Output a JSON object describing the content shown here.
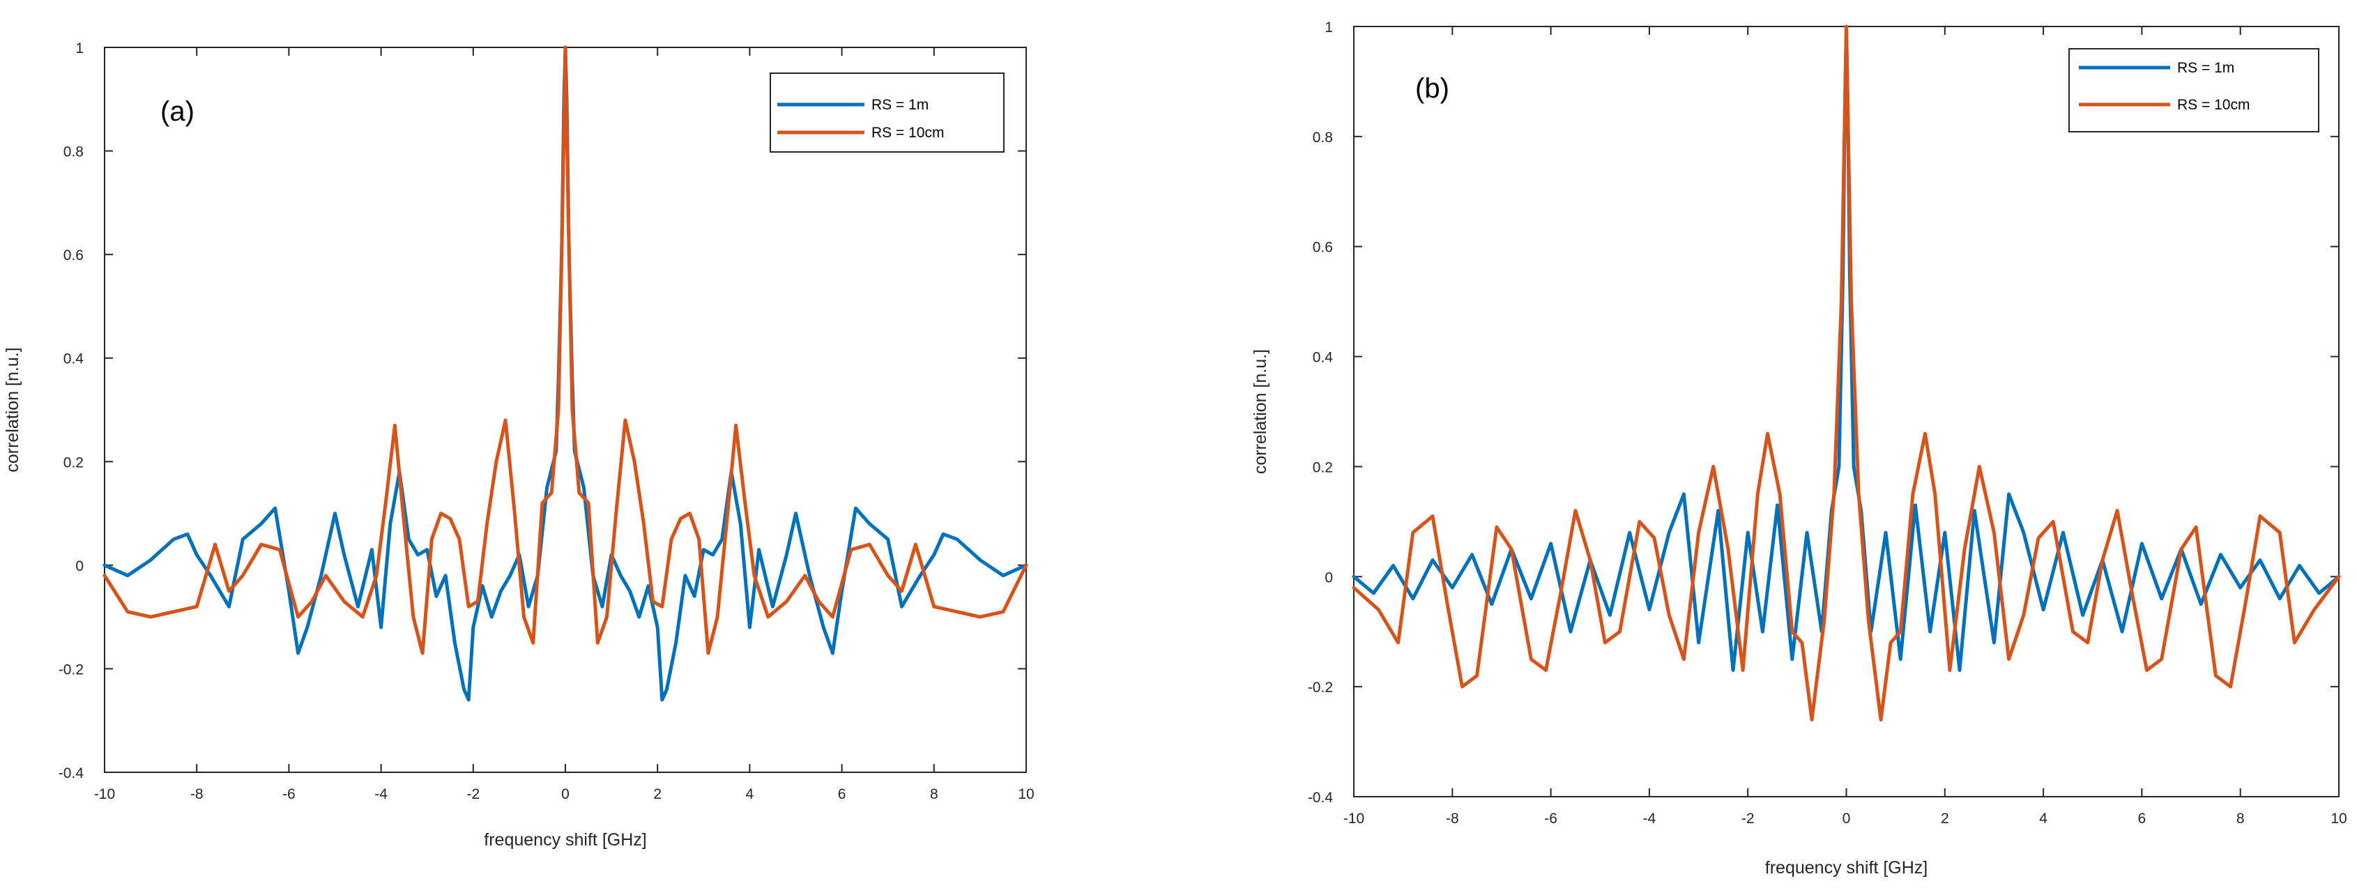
{
  "chart_data": [
    {
      "type": "line",
      "panel_label": "(a)",
      "xlabel": "frequency shift [GHz]",
      "ylabel": "correlation [n.u.]",
      "xlim": [
        -10,
        10
      ],
      "ylim": [
        -0.4,
        1
      ],
      "xticks": [
        -10,
        -8,
        -6,
        -4,
        -2,
        0,
        2,
        4,
        6,
        8,
        10
      ],
      "xtick_labels": [
        "-10",
        "-8",
        "-6",
        "-4",
        "-2",
        "0",
        "2",
        "4",
        "6",
        "8",
        "10"
      ],
      "yticks": [
        -0.4,
        -0.2,
        0,
        0.2,
        0.4,
        0.6,
        0.8,
        1
      ],
      "ytick_labels": [
        "-0.4",
        "-0.2",
        "0",
        "0.2",
        "0.4",
        "0.6",
        "0.8",
        "1"
      ],
      "legend_position": "top-right",
      "grid": false,
      "series": [
        {
          "name": "RS = 1m",
          "color": "#0072BD",
          "x": [
            -10,
            -9.5,
            -9,
            -8.5,
            -8.2,
            -8,
            -7.7,
            -7.3,
            -7,
            -6.6,
            -6.3,
            -6,
            -5.8,
            -5.6,
            -5.3,
            -5,
            -4.8,
            -4.5,
            -4.2,
            -4,
            -3.8,
            -3.6,
            -3.4,
            -3.2,
            -3,
            -2.8,
            -2.6,
            -2.4,
            -2.2,
            -2.1,
            -2,
            -1.8,
            -1.6,
            -1.4,
            -1.2,
            -1,
            -0.8,
            -0.6,
            -0.4,
            -0.2,
            -0.15,
            -0.08,
            -0.03,
            0,
            0.03,
            0.08,
            0.15,
            0.2,
            0.4,
            0.6,
            0.8,
            1,
            1.2,
            1.4,
            1.6,
            1.8,
            2,
            2.1,
            2.2,
            2.4,
            2.6,
            2.8,
            3,
            3.2,
            3.4,
            3.6,
            3.8,
            4,
            4.2,
            4.5,
            4.8,
            5,
            5.3,
            5.6,
            5.8,
            6,
            6.3,
            6.6,
            7,
            7.3,
            7.7,
            8,
            8.2,
            8.5,
            9,
            9.5,
            10
          ],
          "y": [
            0,
            -0.02,
            0.01,
            0.05,
            0.06,
            0.02,
            -0.02,
            -0.08,
            0.05,
            0.08,
            0.11,
            -0.05,
            -0.17,
            -0.12,
            -0.02,
            0.1,
            0.02,
            -0.08,
            0.03,
            -0.12,
            0.08,
            0.18,
            0.05,
            0.02,
            0.03,
            -0.06,
            -0.02,
            -0.15,
            -0.24,
            -0.26,
            -0.12,
            -0.04,
            -0.1,
            -0.05,
            -0.02,
            0.02,
            -0.08,
            -0.02,
            0.15,
            0.22,
            0.36,
            0.6,
            0.9,
            1.0,
            0.9,
            0.6,
            0.36,
            0.22,
            0.15,
            -0.02,
            -0.08,
            0.02,
            -0.02,
            -0.05,
            -0.1,
            -0.04,
            -0.12,
            -0.26,
            -0.24,
            -0.15,
            -0.02,
            -0.06,
            0.03,
            0.02,
            0.05,
            0.18,
            0.08,
            -0.12,
            0.03,
            -0.08,
            0.02,
            0.1,
            -0.02,
            -0.12,
            -0.17,
            -0.05,
            0.11,
            0.08,
            0.05,
            -0.08,
            -0.02,
            0.02,
            0.06,
            0.05,
            0.01,
            -0.02,
            0
          ]
        },
        {
          "name": "RS = 10cm",
          "color": "#D95319",
          "x": [
            -10,
            -9.5,
            -9,
            -8.5,
            -8,
            -7.6,
            -7.3,
            -7,
            -6.6,
            -6.2,
            -5.8,
            -5.5,
            -5.2,
            -4.8,
            -4.4,
            -4.1,
            -3.9,
            -3.7,
            -3.5,
            -3.3,
            -3.1,
            -2.9,
            -2.7,
            -2.5,
            -2.3,
            -2.1,
            -1.9,
            -1.7,
            -1.5,
            -1.3,
            -1.1,
            -0.9,
            -0.7,
            -0.5,
            -0.3,
            -0.15,
            -0.07,
            0,
            0.07,
            0.15,
            0.3,
            0.5,
            0.7,
            0.9,
            1.1,
            1.3,
            1.5,
            1.7,
            1.9,
            2.1,
            2.3,
            2.5,
            2.7,
            2.9,
            3.1,
            3.3,
            3.5,
            3.7,
            3.9,
            4.1,
            4.4,
            4.8,
            5.2,
            5.5,
            5.8,
            6.2,
            6.6,
            7,
            7.3,
            7.6,
            8,
            8.5,
            9,
            9.5,
            10
          ],
          "y": [
            -0.02,
            -0.09,
            -0.1,
            -0.09,
            -0.08,
            0.04,
            -0.05,
            -0.02,
            0.04,
            0.03,
            -0.1,
            -0.07,
            -0.02,
            -0.07,
            -0.1,
            -0.02,
            0.12,
            0.27,
            0.08,
            -0.1,
            -0.17,
            0.05,
            0.1,
            0.09,
            0.05,
            -0.08,
            -0.07,
            0.08,
            0.2,
            0.28,
            0.1,
            -0.1,
            -0.15,
            0.12,
            0.14,
            0.3,
            0.65,
            1.0,
            0.65,
            0.3,
            0.14,
            0.12,
            -0.15,
            -0.1,
            0.1,
            0.28,
            0.2,
            0.08,
            -0.07,
            -0.08,
            0.05,
            0.09,
            0.1,
            0.05,
            -0.17,
            -0.1,
            0.08,
            0.27,
            0.12,
            -0.02,
            -0.1,
            -0.07,
            -0.02,
            -0.07,
            -0.1,
            0.03,
            0.04,
            -0.02,
            -0.05,
            0.04,
            -0.08,
            -0.09,
            -0.1,
            -0.09,
            0
          ]
        }
      ]
    },
    {
      "type": "line",
      "panel_label": "(b)",
      "xlabel": "frequency shift [GHz]",
      "ylabel": "correlation [n.u.]",
      "xlim": [
        -10,
        10
      ],
      "ylim": [
        -0.4,
        1
      ],
      "xticks": [
        -10,
        -8,
        -6,
        -4,
        -2,
        0,
        2,
        4,
        6,
        8,
        10
      ],
      "xtick_labels": [
        "-10",
        "-8",
        "-6",
        "-4",
        "-2",
        "0",
        "2",
        "4",
        "6",
        "8",
        "10"
      ],
      "yticks": [
        -0.4,
        -0.2,
        0,
        0.2,
        0.4,
        0.6,
        0.8,
        1
      ],
      "ytick_labels": [
        "-0.4",
        "-0.2",
        "0",
        "0.2",
        "0.4",
        "0.6",
        "0.8",
        "1"
      ],
      "legend_position": "top-right",
      "grid": false,
      "series": [
        {
          "name": "RS = 1m",
          "color": "#0072BD",
          "x": [
            -10,
            -9.6,
            -9.2,
            -8.8,
            -8.4,
            -8,
            -7.6,
            -7.2,
            -6.8,
            -6.4,
            -6,
            -5.6,
            -5.2,
            -4.8,
            -4.4,
            -4,
            -3.6,
            -3.3,
            -3,
            -2.6,
            -2.3,
            -2,
            -1.7,
            -1.4,
            -1.1,
            -0.8,
            -0.5,
            -0.3,
            -0.15,
            -0.07,
            -0.03,
            0,
            0.03,
            0.07,
            0.15,
            0.3,
            0.5,
            0.8,
            1.1,
            1.4,
            1.7,
            2,
            2.3,
            2.6,
            3,
            3.3,
            3.6,
            4,
            4.4,
            4.8,
            5.2,
            5.6,
            6,
            6.4,
            6.8,
            7.2,
            7.6,
            8,
            8.4,
            8.8,
            9.2,
            9.6,
            10
          ],
          "y": [
            0,
            -0.03,
            0.02,
            -0.04,
            0.03,
            -0.02,
            0.04,
            -0.05,
            0.05,
            -0.04,
            0.06,
            -0.1,
            0.03,
            -0.07,
            0.08,
            -0.06,
            0.08,
            0.15,
            -0.12,
            0.12,
            -0.17,
            0.08,
            -0.1,
            0.13,
            -0.15,
            0.08,
            -0.1,
            0.12,
            0.2,
            0.55,
            0.85,
            1.0,
            0.85,
            0.55,
            0.2,
            0.12,
            -0.1,
            0.08,
            -0.15,
            0.13,
            -0.1,
            0.08,
            -0.17,
            0.12,
            -0.12,
            0.15,
            0.08,
            -0.06,
            0.08,
            -0.07,
            0.03,
            -0.1,
            0.06,
            -0.04,
            0.05,
            -0.05,
            0.04,
            -0.02,
            0.03,
            -0.04,
            0.02,
            -0.03,
            0
          ]
        },
        {
          "name": "RS = 10cm",
          "color": "#D95319",
          "x": [
            -10,
            -9.5,
            -9.1,
            -8.8,
            -8.4,
            -8.1,
            -7.8,
            -7.5,
            -7.1,
            -6.8,
            -6.4,
            -6.1,
            -5.8,
            -5.5,
            -5.2,
            -4.9,
            -4.6,
            -4.2,
            -3.9,
            -3.6,
            -3.3,
            -3.0,
            -2.7,
            -2.4,
            -2.1,
            -1.8,
            -1.6,
            -1.35,
            -1.1,
            -0.9,
            -0.7,
            -0.45,
            -0.25,
            -0.1,
            0,
            0.1,
            0.25,
            0.45,
            0.7,
            0.9,
            1.1,
            1.35,
            1.6,
            1.8,
            2.1,
            2.4,
            2.7,
            3.0,
            3.3,
            3.6,
            3.9,
            4.2,
            4.6,
            4.9,
            5.2,
            5.5,
            5.8,
            6.1,
            6.4,
            6.8,
            7.1,
            7.5,
            7.8,
            8.1,
            8.4,
            8.8,
            9.1,
            9.5,
            10
          ],
          "y": [
            -0.02,
            -0.06,
            -0.12,
            0.08,
            0.11,
            -0.05,
            -0.2,
            -0.18,
            0.09,
            0.05,
            -0.15,
            -0.17,
            -0.03,
            0.12,
            0.03,
            -0.12,
            -0.1,
            0.1,
            0.07,
            -0.07,
            -0.15,
            0.08,
            0.2,
            0.05,
            -0.17,
            0.15,
            0.26,
            0.15,
            -0.1,
            -0.12,
            -0.26,
            -0.08,
            0.15,
            0.5,
            1.0,
            0.5,
            0.15,
            -0.08,
            -0.26,
            -0.12,
            -0.1,
            0.15,
            0.26,
            0.15,
            -0.17,
            0.05,
            0.2,
            0.08,
            -0.15,
            -0.07,
            0.07,
            0.1,
            -0.1,
            -0.12,
            0.03,
            0.12,
            -0.03,
            -0.17,
            -0.15,
            0.05,
            0.09,
            -0.18,
            -0.2,
            -0.05,
            0.11,
            0.08,
            -0.12,
            -0.06,
            0
          ]
        }
      ]
    }
  ]
}
